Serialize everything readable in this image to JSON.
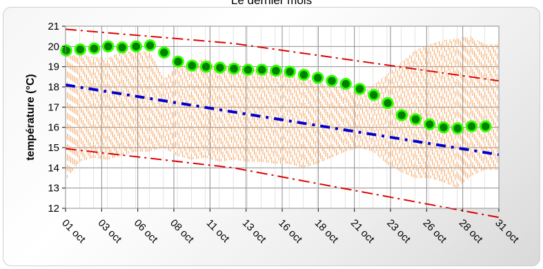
{
  "chart_data": {
    "type": "line",
    "title": "Le dernier mois",
    "ylabel": "température (°C)",
    "xlabel": "",
    "ylim": [
      12,
      21
    ],
    "yticks": [
      "12",
      "13",
      "14",
      "15",
      "16",
      "17",
      "18",
      "19",
      "20",
      "21"
    ],
    "xticks": [
      "01 oct",
      "03 oct",
      "06 oct",
      "08 oct",
      "11 oct",
      "13 oct",
      "16 oct",
      "18 oct",
      "21 oct",
      "23 oct",
      "26 oct",
      "28 oct",
      "31 oct"
    ],
    "grid": true,
    "series": [
      {
        "type": "scatter",
        "color": "#008000",
        "outline": "#33ff00",
        "x": [
          0,
          1,
          2,
          3,
          4,
          5,
          6,
          7,
          8,
          9,
          10,
          11,
          12,
          13,
          14,
          15,
          16,
          17,
          18,
          19,
          20,
          21,
          22,
          23,
          24,
          25,
          26,
          27,
          28,
          29,
          30
        ],
        "values": [
          19.8,
          19.85,
          19.9,
          20.0,
          19.95,
          20.0,
          20.05,
          19.7,
          19.25,
          19.05,
          19.0,
          18.95,
          18.9,
          18.85,
          18.85,
          18.8,
          18.75,
          18.6,
          18.45,
          18.3,
          18.15,
          17.9,
          17.6,
          17.2,
          16.6,
          16.4,
          16.15,
          16.0,
          15.95,
          16.05,
          16.05
        ]
      },
      {
        "type": "dash-line",
        "color": "#0000cc",
        "x": [
          0,
          31
        ],
        "values": [
          18.1,
          14.65
        ]
      },
      {
        "type": "dash-dot-line",
        "color": "#dd0000",
        "x": [
          0,
          12,
          31
        ],
        "values": [
          20.85,
          20.15,
          18.3
        ]
      },
      {
        "type": "dash-dot-line",
        "color": "#dd0000",
        "x": [
          0,
          12,
          31
        ],
        "values": [
          14.95,
          14.0,
          11.55
        ]
      },
      {
        "type": "range-bars",
        "color": "#f4a460",
        "x": [
          0,
          1,
          2,
          3,
          4,
          5,
          6,
          7,
          8,
          9,
          10,
          11,
          12,
          13,
          14,
          15,
          16,
          17,
          18,
          19,
          20,
          21,
          22,
          23,
          24,
          25,
          26,
          27,
          28,
          29,
          30
        ],
        "low": [
          13.4,
          14.3,
          14.5,
          14.4,
          14.6,
          14.8,
          14.8,
          15.0,
          14.6,
          14.4,
          14.5,
          14.3,
          14.4,
          14.3,
          14.3,
          14.2,
          14.2,
          14.0,
          14.2,
          14.5,
          14.8,
          15.0,
          14.8,
          14.2,
          13.8,
          13.5,
          13.5,
          13.3,
          13.0,
          13.6,
          13.9
        ],
        "high": [
          19.5,
          19.6,
          19.5,
          19.4,
          19.8,
          19.7,
          19.8,
          18.4,
          19.0,
          19.2,
          19.4,
          19.0,
          19.2,
          19.0,
          18.8,
          18.7,
          18.6,
          18.4,
          18.3,
          18.0,
          18.0,
          17.6,
          18.1,
          18.6,
          19.2,
          19.8,
          20.1,
          20.3,
          20.4,
          20.5,
          20.1
        ]
      }
    ]
  }
}
